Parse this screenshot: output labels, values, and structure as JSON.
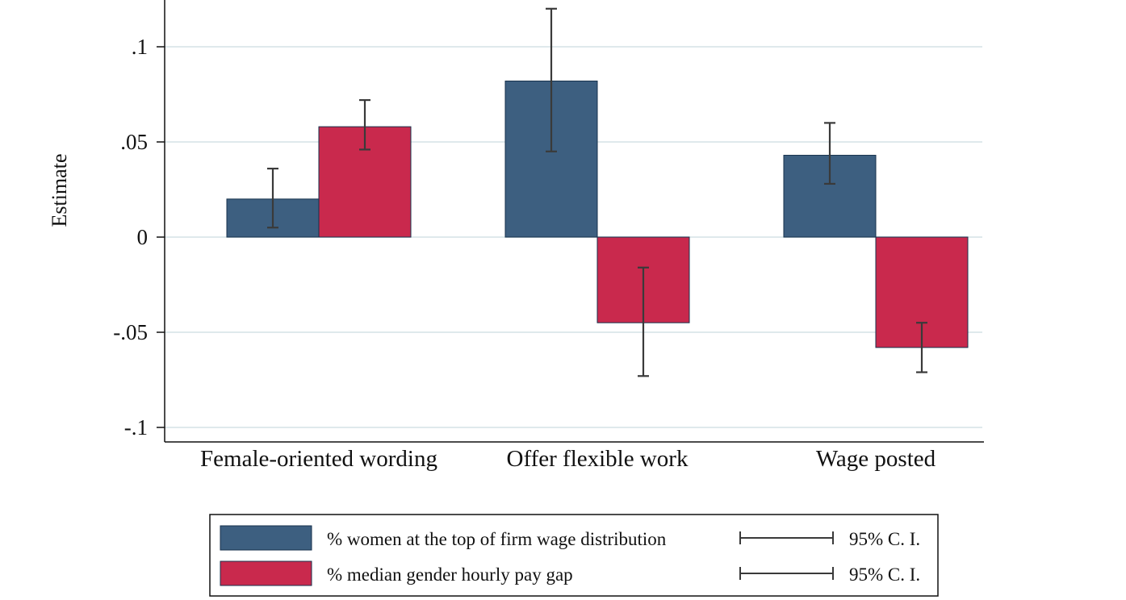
{
  "colors": {
    "series_1": "#3d5f80",
    "series_2": "#c9294d",
    "gridline": "#dfe9ec",
    "errorbar": "#3a3a3a",
    "axis": "#111111",
    "bar_stroke": "#17324d"
  },
  "chart_data": {
    "type": "bar",
    "title": "",
    "xlabel": "",
    "ylabel": "Estimate",
    "ylim": [
      -0.105,
      0.125
    ],
    "yticks": [
      0.1,
      0.05,
      0,
      -0.05,
      -0.1
    ],
    "ytick_labels": [
      ".1",
      ".05",
      "0",
      "-.05",
      "-.1"
    ],
    "grid": true,
    "legend_position": "bottom",
    "categories": [
      "Female-oriented wording",
      "Offer flexible work",
      "Wage posted"
    ],
    "series": [
      {
        "name": "% women at the top of firm wage distribution",
        "values": [
          0.02,
          0.082,
          0.043
        ],
        "ci_low": [
          0.005,
          0.045,
          0.028
        ],
        "ci_high": [
          0.036,
          0.12,
          0.06
        ]
      },
      {
        "name": "% median gender hourly pay gap",
        "values": [
          0.058,
          -0.045,
          -0.058
        ],
        "ci_low": [
          0.046,
          -0.073,
          -0.071
        ],
        "ci_high": [
          0.072,
          -0.016,
          -0.045
        ]
      }
    ],
    "legend_ci_label": "95% C. I."
  }
}
